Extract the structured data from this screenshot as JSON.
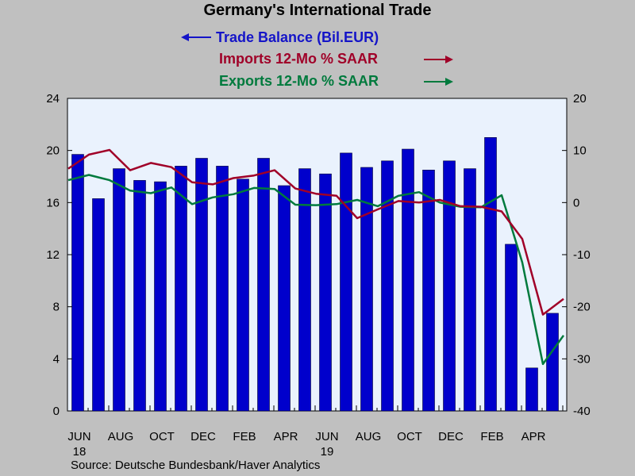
{
  "colors": {
    "background": "#c0c0c0",
    "plot_bg": "#eaf2fd",
    "bars": "#0000cc",
    "bar_edge": "#000033",
    "imports": "#a00028",
    "exports": "#007a3d",
    "trade_legend": "#1414c8"
  },
  "source": "Source:  Deutsche Bundesbank/Haver Analytics",
  "chart_data": {
    "type": "bar",
    "title": "Germany's International Trade",
    "x_tick_labels": [
      "JUN",
      "AUG",
      "OCT",
      "DEC",
      "FEB",
      "APR",
      "JUN",
      "AUG",
      "OCT",
      "DEC",
      "FEB",
      "APR"
    ],
    "x_year_labels": [
      "18",
      "19"
    ],
    "left_axis": {
      "min": 0,
      "max": 24,
      "ticks": [
        "0",
        "4",
        "8",
        "12",
        "16",
        "20",
        "24"
      ]
    },
    "right_axis": {
      "min": -40,
      "max": 20,
      "ticks": [
        "-40",
        "-30",
        "-20",
        "-10",
        "0",
        "10",
        "20"
      ]
    },
    "series": [
      {
        "name": "Trade Balance (Bil.EUR)",
        "legend_label": "Trade Balance (Bil.EUR)",
        "kind": "bar",
        "axis": "left",
        "values": [
          19.7,
          16.3,
          18.6,
          17.7,
          17.6,
          18.8,
          19.4,
          18.8,
          17.8,
          19.4,
          17.3,
          18.6,
          18.2,
          19.8,
          18.7,
          19.2,
          20.1,
          18.5,
          19.2,
          18.6,
          21.0,
          12.8,
          3.3,
          7.5
        ]
      },
      {
        "name": "Imports 12-Mo % SAAR",
        "legend_label": "Imports 12-Mo % SAAR",
        "kind": "line",
        "axis": "right",
        "values": [
          6.5,
          9.2,
          10.1,
          6.2,
          7.6,
          6.8,
          3.9,
          3.5,
          4.7,
          5.2,
          6.2,
          2.7,
          1.7,
          1.3,
          -3.0,
          -1.3,
          0.3,
          0.0,
          0.5,
          -0.7,
          -0.8,
          -1.7,
          -7.0,
          -21.5,
          -18.5
        ]
      },
      {
        "name": "Exports 12-Mo % SAAR",
        "legend_label": "Exports 12-Mo % SAAR",
        "kind": "line",
        "axis": "right",
        "values": [
          4.3,
          5.3,
          4.3,
          2.3,
          1.8,
          2.9,
          -0.3,
          1.0,
          1.6,
          2.8,
          2.6,
          -0.4,
          -0.5,
          -0.3,
          0.5,
          -0.7,
          1.3,
          2.0,
          0.0,
          -0.8,
          -0.9,
          1.4,
          -11.5,
          -31.0,
          -25.5
        ]
      }
    ]
  }
}
